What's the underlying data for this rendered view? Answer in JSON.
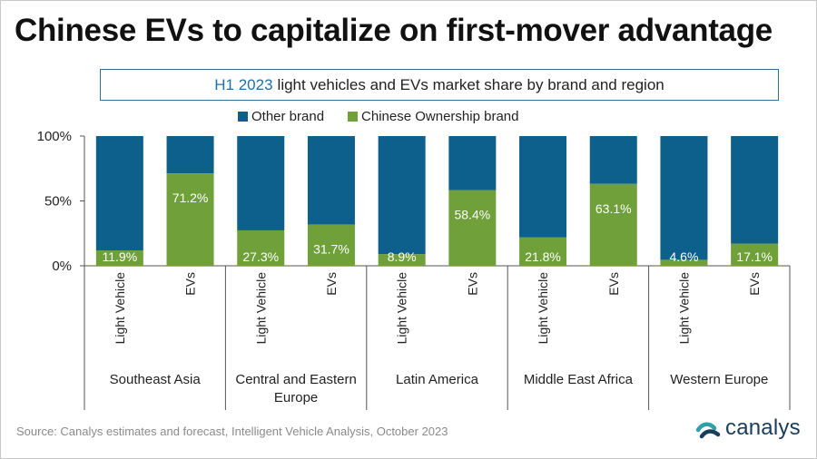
{
  "title": "Chinese EVs to capitalize on first-mover advantage",
  "subtitle": {
    "highlight": "H1 2023",
    "rest": "light vehicles and EVs market share by brand and region"
  },
  "legend": {
    "other": "Other brand",
    "chinese": "Chinese Ownership brand"
  },
  "colors": {
    "other": "#0d5f8c",
    "chinese": "#70a03a",
    "axis": "#555555",
    "label_white": "#ffffff"
  },
  "chart_data": {
    "type": "bar",
    "stacked": true,
    "ylim": [
      0,
      100
    ],
    "yticks": [
      "0%",
      "50%",
      "100%"
    ],
    "ytick_values": [
      0,
      50,
      100
    ],
    "groups": [
      {
        "region": "Southeast Asia",
        "bars": [
          {
            "category": "Light Vehicle",
            "chinese": 11.9,
            "label": "11.9%"
          },
          {
            "category": "EVs",
            "chinese": 71.2,
            "label": "71.2%"
          }
        ]
      },
      {
        "region": "Central and Eastern Europe",
        "bars": [
          {
            "category": "Light Vehicle",
            "chinese": 27.3,
            "label": "27.3%"
          },
          {
            "category": "EVs",
            "chinese": 31.7,
            "label": "31.7%"
          }
        ]
      },
      {
        "region": "Latin America",
        "bars": [
          {
            "category": "Light Vehicle",
            "chinese": 8.9,
            "label": "8.9%"
          },
          {
            "category": "EVs",
            "chinese": 58.4,
            "label": "58.4%"
          }
        ]
      },
      {
        "region": "Middle East Africa",
        "bars": [
          {
            "category": "Light Vehicle",
            "chinese": 21.8,
            "label": "21.8%"
          },
          {
            "category": "EVs",
            "chinese": 63.1,
            "label": "63.1%"
          }
        ]
      },
      {
        "region": "Western Europe",
        "bars": [
          {
            "category": "Light Vehicle",
            "chinese": 4.6,
            "label": "4.6%"
          },
          {
            "category": "EVs",
            "chinese": 17.1,
            "label": "17.1%"
          }
        ]
      }
    ]
  },
  "source": "Source:  Canalys estimates and forecast, Intelligent Vehicle Analysis, October 2023",
  "brand": "canalys"
}
